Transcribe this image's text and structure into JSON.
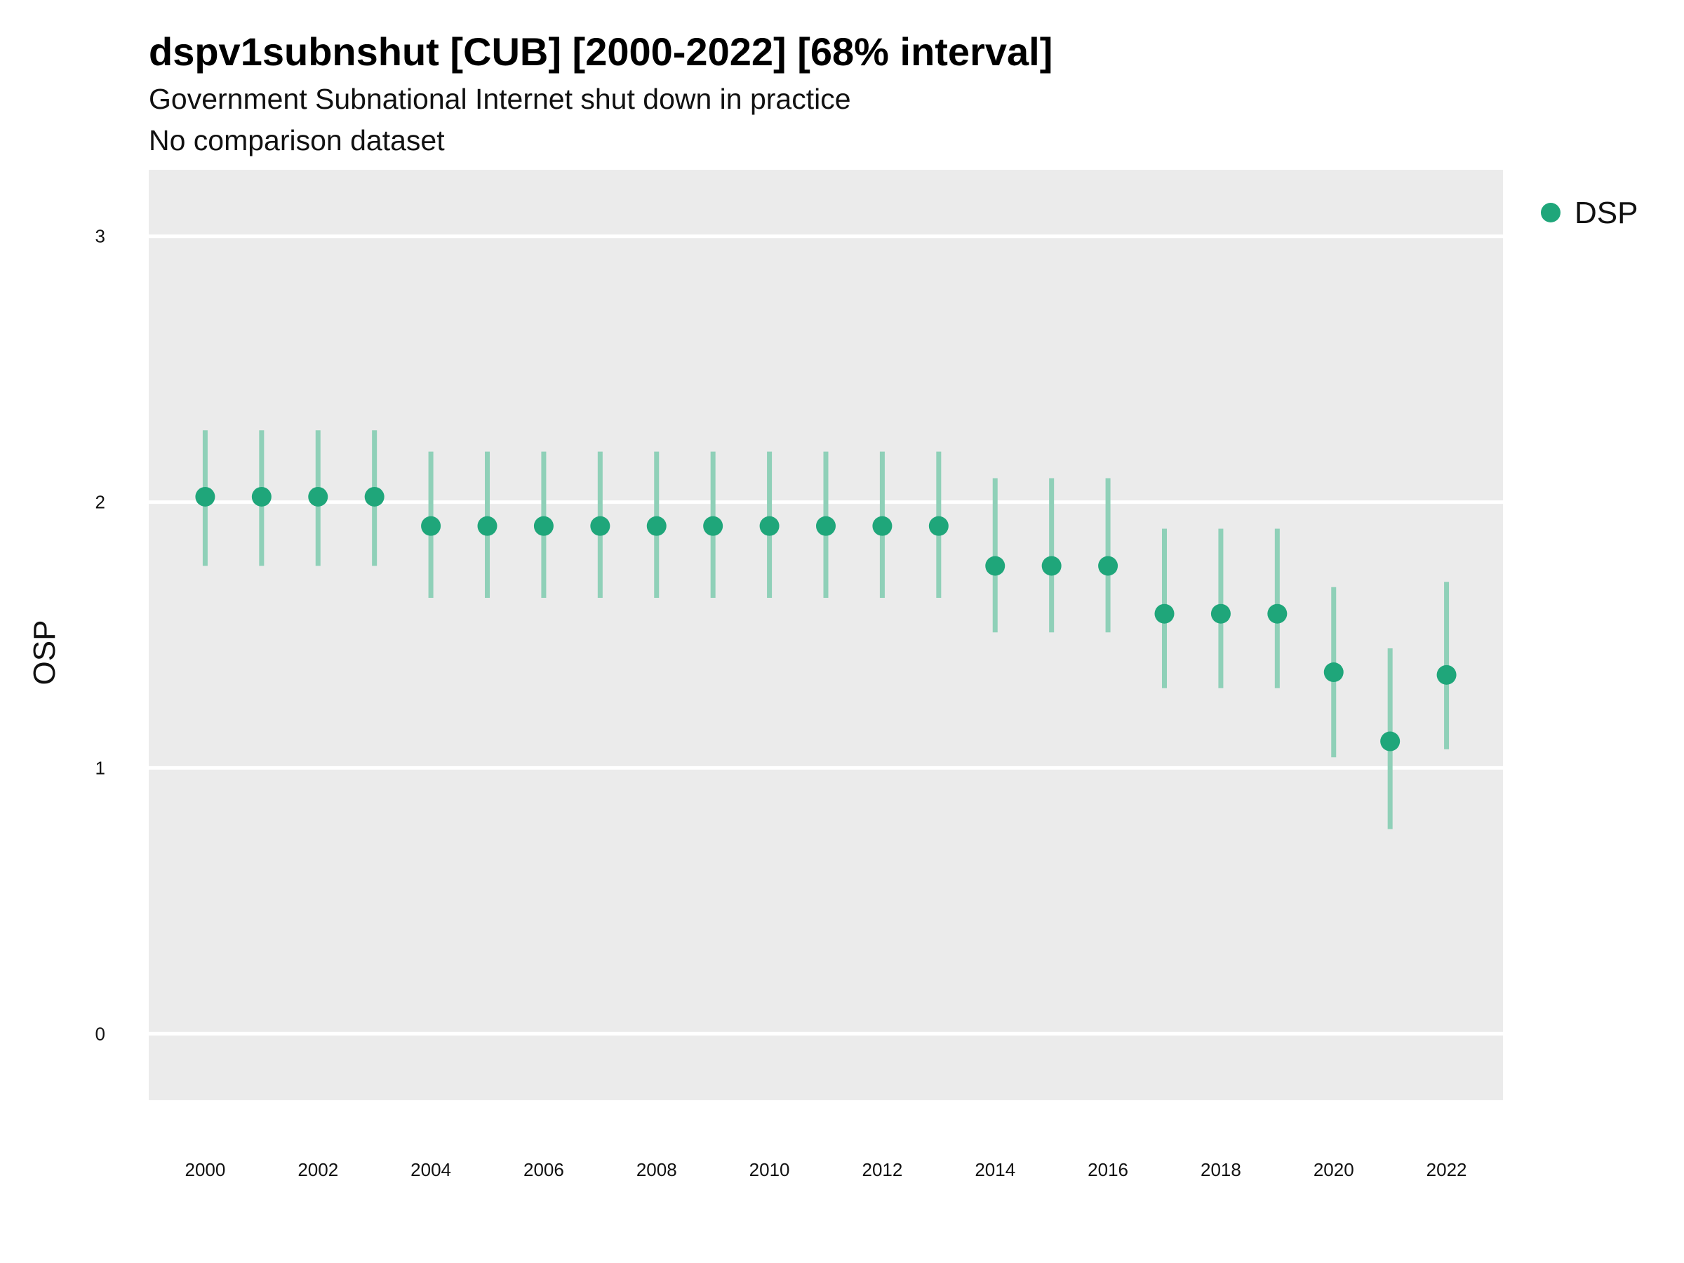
{
  "chart_data": {
    "type": "scatter",
    "title": "dspv1subnshut [CUB] [2000-2022] [68% interval]",
    "subtitle": "Government Subnational Internet shut down in practice",
    "subtitle2": "No comparison dataset",
    "xlabel": "",
    "ylabel": "OSP",
    "xlim": [
      1999,
      2023
    ],
    "ylim": [
      -0.25,
      3.25
    ],
    "x_ticks": [
      "2000",
      "2002",
      "2004",
      "2006",
      "2008",
      "2010",
      "2012",
      "2014",
      "2016",
      "2018",
      "2020",
      "2022"
    ],
    "y_ticks": [
      "0",
      "1",
      "2",
      "3"
    ],
    "grid": true,
    "legend_position": "right",
    "colors": {
      "point": "#1fa67a",
      "interval": "#8fd0b8",
      "panel": "#ebebeb",
      "grid": "#ffffff"
    },
    "series": [
      {
        "name": "DSP",
        "x": [
          2000,
          2001,
          2002,
          2003,
          2004,
          2005,
          2006,
          2007,
          2008,
          2009,
          2010,
          2011,
          2012,
          2013,
          2014,
          2015,
          2016,
          2017,
          2018,
          2019,
          2020,
          2021,
          2022
        ],
        "y": [
          2.02,
          2.02,
          2.02,
          2.02,
          1.91,
          1.91,
          1.91,
          1.91,
          1.91,
          1.91,
          1.91,
          1.91,
          1.91,
          1.91,
          1.76,
          1.76,
          1.76,
          1.58,
          1.58,
          1.58,
          1.36,
          1.1,
          1.35
        ],
        "lower": [
          1.76,
          1.76,
          1.76,
          1.76,
          1.64,
          1.64,
          1.64,
          1.64,
          1.64,
          1.64,
          1.64,
          1.64,
          1.64,
          1.64,
          1.51,
          1.51,
          1.51,
          1.3,
          1.3,
          1.3,
          1.04,
          0.77,
          1.07
        ],
        "upper": [
          2.27,
          2.27,
          2.27,
          2.27,
          2.19,
          2.19,
          2.19,
          2.19,
          2.19,
          2.19,
          2.19,
          2.19,
          2.19,
          2.19,
          2.09,
          2.09,
          2.09,
          1.9,
          1.9,
          1.9,
          1.68,
          1.45,
          1.7
        ]
      }
    ]
  }
}
